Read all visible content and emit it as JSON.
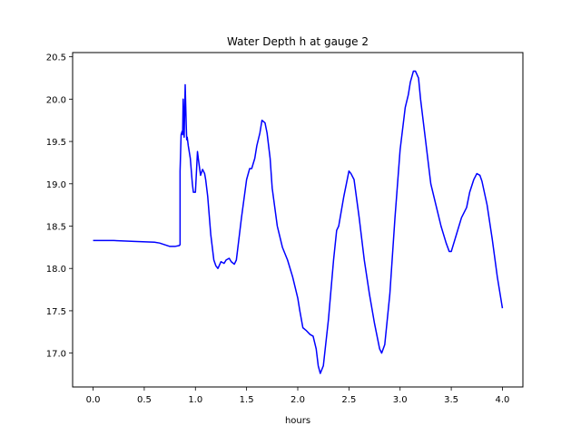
{
  "chart_data": {
    "type": "line",
    "title": "Water Depth h at gauge 2",
    "xlabel": "hours",
    "ylabel": "",
    "xlim": [
      -0.2,
      4.2
    ],
    "ylim": [
      16.6,
      20.55
    ],
    "xticks": [
      0.0,
      0.5,
      1.0,
      1.5,
      2.0,
      2.5,
      3.0,
      3.5,
      4.0
    ],
    "xtick_labels": [
      "0.0",
      "0.5",
      "1.0",
      "1.5",
      "2.0",
      "2.5",
      "3.0",
      "3.5",
      "4.0"
    ],
    "yticks": [
      17.0,
      17.5,
      18.0,
      18.5,
      19.0,
      19.5,
      20.0,
      20.5
    ],
    "ytick_labels": [
      "17.0",
      "17.5",
      "18.0",
      "18.5",
      "19.0",
      "19.5",
      "20.0",
      "20.5"
    ],
    "grid": false,
    "line_color": "#0000ff",
    "series": [
      {
        "x": [
          0.0,
          0.2,
          0.4,
          0.6,
          0.65,
          0.7,
          0.75,
          0.8,
          0.84,
          0.85,
          0.85,
          0.86,
          0.87,
          0.875,
          0.88,
          0.89,
          0.9,
          0.91,
          0.915,
          0.92,
          0.93,
          0.95,
          0.97,
          0.98,
          1.0,
          1.02,
          1.03,
          1.05,
          1.07,
          1.09,
          1.1,
          1.12,
          1.15,
          1.18,
          1.2,
          1.22,
          1.25,
          1.28,
          1.3,
          1.33,
          1.35,
          1.38,
          1.4,
          1.42,
          1.45,
          1.5,
          1.53,
          1.55,
          1.58,
          1.6,
          1.63,
          1.65,
          1.68,
          1.7,
          1.73,
          1.75,
          1.8,
          1.85,
          1.9,
          1.95,
          2.0,
          2.02,
          2.05,
          2.08,
          2.12,
          2.15,
          2.18,
          2.2,
          2.22,
          2.25,
          2.3,
          2.35,
          2.38,
          2.4,
          2.45,
          2.5,
          2.52,
          2.55,
          2.6,
          2.65,
          2.7,
          2.75,
          2.8,
          2.82,
          2.85,
          2.9,
          2.95,
          3.0,
          3.05,
          3.08,
          3.1,
          3.13,
          3.15,
          3.18,
          3.2,
          3.25,
          3.3,
          3.35,
          3.4,
          3.45,
          3.48,
          3.5,
          3.55,
          3.6,
          3.65,
          3.68,
          3.72,
          3.75,
          3.78,
          3.8,
          3.85,
          3.9,
          3.95,
          4.0
        ],
        "y": [
          18.33,
          18.33,
          18.32,
          18.31,
          18.3,
          18.28,
          18.26,
          18.26,
          18.27,
          18.28,
          19.15,
          19.58,
          19.62,
          19.58,
          20.0,
          19.55,
          20.17,
          19.7,
          19.52,
          19.55,
          19.45,
          19.3,
          19.0,
          18.9,
          18.9,
          19.38,
          19.28,
          19.1,
          19.17,
          19.12,
          19.05,
          18.85,
          18.4,
          18.1,
          18.03,
          18.0,
          18.08,
          18.06,
          18.1,
          18.12,
          18.08,
          18.05,
          18.1,
          18.3,
          18.6,
          19.05,
          19.18,
          19.18,
          19.3,
          19.45,
          19.6,
          19.75,
          19.72,
          19.6,
          19.3,
          18.95,
          18.5,
          18.25,
          18.1,
          17.9,
          17.65,
          17.5,
          17.3,
          17.27,
          17.22,
          17.2,
          17.05,
          16.85,
          16.76,
          16.85,
          17.4,
          18.1,
          18.45,
          18.5,
          18.85,
          19.15,
          19.12,
          19.05,
          18.6,
          18.1,
          17.7,
          17.35,
          17.05,
          17.0,
          17.1,
          17.7,
          18.6,
          19.4,
          19.9,
          20.05,
          20.2,
          20.33,
          20.33,
          20.25,
          20.0,
          19.5,
          19.0,
          18.75,
          18.5,
          18.3,
          18.2,
          18.2,
          18.4,
          18.6,
          18.72,
          18.9,
          19.05,
          19.12,
          19.1,
          19.03,
          18.75,
          18.35,
          17.9,
          17.53
        ]
      }
    ]
  }
}
